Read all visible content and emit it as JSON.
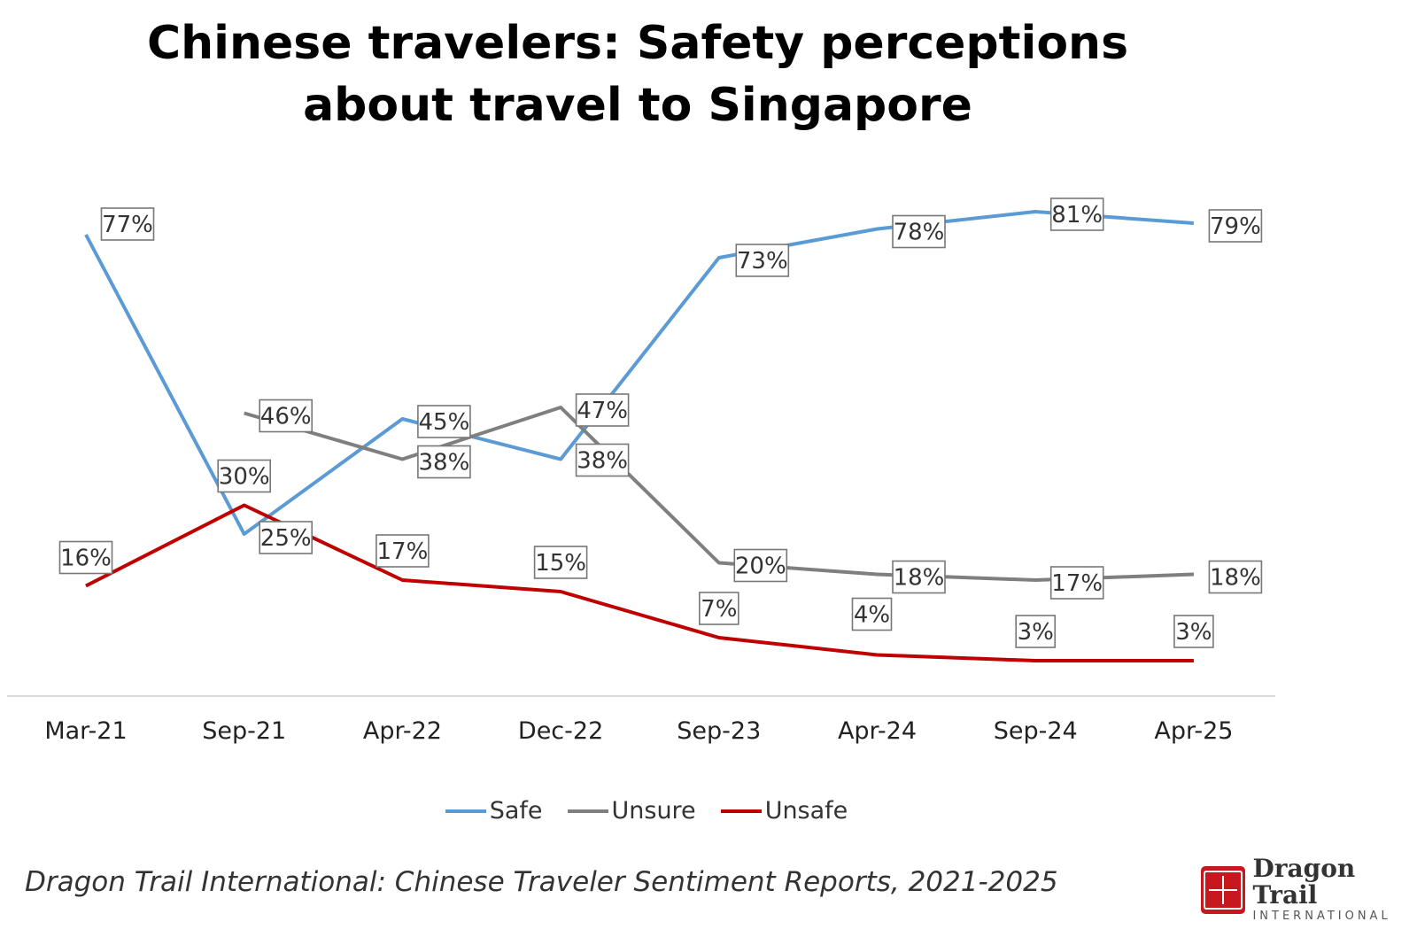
{
  "chart_data": {
    "type": "line",
    "title_line1": "Chinese travelers: Safety perceptions",
    "title_line2": "about travel to Singapore",
    "categories": [
      "Mar-21",
      "Sep-21",
      "Apr-22",
      "Dec-22",
      "Sep-23",
      "Apr-24",
      "Sep-24",
      "Apr-25"
    ],
    "ylim": [
      0,
      100
    ],
    "grid": false,
    "legend_position": "bottom",
    "series": [
      {
        "name": "Safe",
        "color": "#5b9bd5",
        "values": [
          77,
          25,
          45,
          38,
          73,
          78,
          81,
          79
        ],
        "labels": [
          "77%",
          "25%",
          "45%",
          "38%",
          "73%",
          "78%",
          "81%",
          "79%"
        ]
      },
      {
        "name": "Unsure",
        "color": "#7f7f7f",
        "values": [
          null,
          46,
          38,
          47,
          20,
          18,
          17,
          18
        ],
        "labels": [
          "",
          "46%",
          "38%",
          "47%",
          "20%",
          "18%",
          "17%",
          "18%"
        ]
      },
      {
        "name": "Unsafe",
        "color": "#c00000",
        "values": [
          16,
          30,
          17,
          15,
          7,
          4,
          3,
          3
        ],
        "labels": [
          "16%",
          "30%",
          "17%",
          "15%",
          "7%",
          "4%",
          "3%",
          "3%"
        ]
      }
    ]
  },
  "footer": {
    "source": "Dragon Trail International: Chinese Traveler Sentiment Reports, 2021-2025"
  },
  "logo": {
    "name": "Dragon Trail",
    "subtitle": "INTERNATIONAL"
  }
}
